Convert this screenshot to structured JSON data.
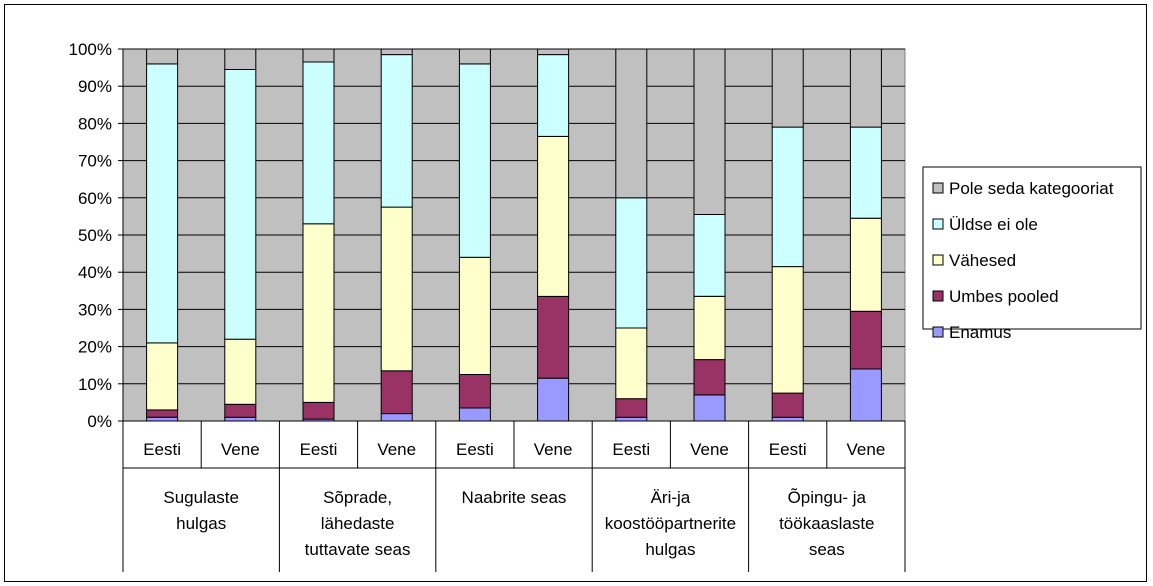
{
  "chart_data": {
    "type": "bar",
    "stacked": "percent",
    "subcategories": [
      "Eesti",
      "Vene",
      "Eesti",
      "Vene",
      "Eesti",
      "Vene",
      "Eesti",
      "Vene",
      "Eesti",
      "Vene"
    ],
    "groups": [
      {
        "lines": [
          "Sugulaste",
          "hulgas"
        ]
      },
      {
        "lines": [
          "Sõprade,",
          "lähedaste",
          "tuttavate seas"
        ]
      },
      {
        "lines": [
          "Naabrite seas"
        ]
      },
      {
        "lines": [
          "Äri-ja",
          "koostööpartnerite",
          "hulgas"
        ]
      },
      {
        "lines": [
          "Õpingu- ja",
          "töökaaslaste",
          "seas"
        ]
      }
    ],
    "series": [
      {
        "name": "Enamus",
        "color": "#9999FF",
        "values": [
          1,
          1,
          0.5,
          2,
          3.5,
          11.5,
          1,
          7,
          1,
          14
        ]
      },
      {
        "name": "Umbes pooled",
        "color": "#993366",
        "values": [
          2,
          3.5,
          4.5,
          11.5,
          9,
          22,
          5,
          9.5,
          6.5,
          15.5
        ]
      },
      {
        "name": "Vähesed",
        "color": "#FFFFCC",
        "values": [
          18,
          17.5,
          48,
          44,
          31.5,
          43,
          19,
          17,
          34,
          25
        ]
      },
      {
        "name": "Üldse ei ole",
        "color": "#CCFFFF",
        "values": [
          75,
          72.5,
          43.5,
          41,
          52,
          22,
          35,
          22,
          37.5,
          24.5
        ]
      },
      {
        "name": "Pole seda kategooriat",
        "color": "#C0C0C0",
        "values": [
          4,
          5.5,
          3.5,
          1.5,
          4,
          1.5,
          40,
          44.5,
          21,
          21
        ]
      }
    ],
    "yticks": [
      "0%",
      "10%",
      "20%",
      "30%",
      "40%",
      "50%",
      "60%",
      "70%",
      "80%",
      "90%",
      "100%"
    ],
    "ylim": [
      0,
      100
    ],
    "plot_background": "#C0C0C0",
    "legend_position": "right",
    "legend_order": [
      "Pole seda kategooriat",
      "Üldse ei ole",
      "Vähesed",
      "Umbes pooled",
      "Enamus"
    ],
    "grid": true
  }
}
